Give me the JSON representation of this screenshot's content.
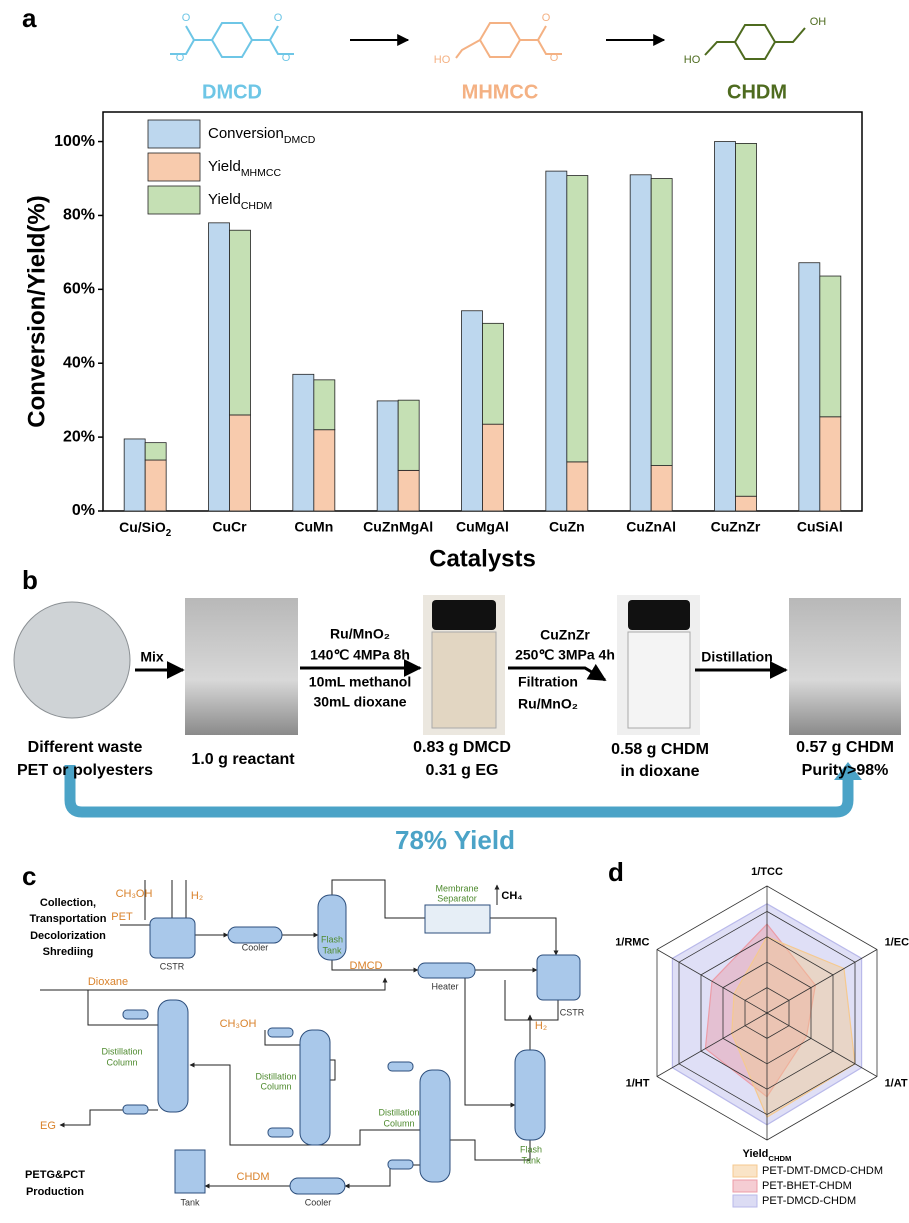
{
  "panel_labels": [
    "a",
    "b",
    "c",
    "d"
  ],
  "scheme": {
    "compounds": [
      {
        "name": "DMCD",
        "color": "#6ec6e6"
      },
      {
        "name": "MHMCC",
        "color": "#f4b183"
      },
      {
        "name": "CHDM",
        "color": "#4e6b1f"
      }
    ],
    "atoms": [
      "O",
      "O",
      "O",
      "O",
      "HO",
      "O",
      "O",
      "HO",
      "OH"
    ]
  },
  "chart_data": [
    {
      "type": "bar",
      "x_label": "Catalysts",
      "y_label": "Conversion/Yield(%)",
      "categories": [
        {
          "label": "Cu/SiO",
          "sub": "2"
        },
        "CuCr",
        "CuMn",
        "CuZnMgAl",
        "CuMgAl",
        "CuZn",
        "CuZnAl",
        "CuZnZr",
        "CuSiAl"
      ],
      "series": [
        {
          "name": "Conversion",
          "name_sub": "DMCD",
          "color": "#bdd7ee",
          "values": [
            19.5,
            78,
            37,
            29.8,
            54.2,
            92,
            91,
            100,
            67.2
          ]
        },
        {
          "name": "Yield",
          "name_sub": "MHMCC",
          "color": "#f8cbad",
          "values": [
            13.8,
            26,
            22,
            11,
            23.5,
            13.3,
            12.3,
            4,
            25.5
          ]
        },
        {
          "name": "Yield",
          "name_sub": "CHDM",
          "color": "#c5e0b4",
          "values": [
            4.7,
            50,
            13.5,
            19,
            27.3,
            77.5,
            77.7,
            95.5,
            38.1
          ]
        }
      ],
      "ylim": [
        0,
        108
      ],
      "yticks": [
        {
          "value": 0,
          "label": "0%"
        },
        {
          "value": 20,
          "label": "20%"
        },
        {
          "value": 40,
          "label": "40%"
        },
        {
          "value": 60,
          "label": "60%"
        },
        {
          "value": 80,
          "label": "80%"
        },
        {
          "value": 100,
          "label": "100%"
        }
      ],
      "legend": "upper left"
    },
    {
      "type": "radar",
      "categories": [
        "1/TCC",
        "1/EC",
        "1/AT",
        {
          "label": "Yield",
          "sub": "CHDM"
        },
        "1/HT",
        "1/RMC"
      ],
      "rlim": [
        0,
        5
      ],
      "rticks": [
        1,
        2,
        3,
        4,
        5
      ],
      "series": [
        {
          "name": "PET-DMT-DMCD-CHDM",
          "color": "#f5c98f",
          "values": [
            3.0,
            3.5,
            4.0,
            4.1,
            1.6,
            1.5
          ]
        },
        {
          "name": "PET-BHET-CHDM",
          "color": "#ec9ca7",
          "values": [
            3.5,
            2.2,
            1.8,
            3.3,
            2.8,
            2.5
          ]
        },
        {
          "name": "PET-DMCD-CHDM",
          "color": "#b9b9ea",
          "values": [
            4.3,
            4.3,
            4.3,
            4.4,
            4.3,
            4.3
          ]
        }
      ],
      "legend": "lower right"
    }
  ],
  "process": {
    "conditions": [
      "Mix",
      "Ru/MnO₂",
      "140℃ 4MPa 8h",
      "10mL methanol",
      "30mL dioxane",
      "CuZnZr",
      "250℃ 3MPa 4h",
      "Filtration",
      "Ru/MnO₂",
      "Distillation"
    ],
    "captions": [
      "Different waste",
      "PET or polyesters",
      "1.0 g reactant",
      "0.83 g DMCD",
      "0.31 g EG",
      "0.58 g CHDM",
      "in dioxane",
      "0.57 g CHDM",
      "Purity>98%"
    ],
    "yield": "78% Yield",
    "yield_color": "#4ba3c7"
  },
  "flowsheet": {
    "labels": [
      "Collection,",
      "Transportation",
      "Decolorization",
      "Shrediing",
      "PET",
      "CH₃OH",
      "H₂",
      "CSTR",
      "Cooler",
      "Flash",
      "Tank",
      "Membrane",
      "Separator",
      "CH₄",
      "DMCD",
      "Dioxane",
      "Heater",
      "CSTR",
      "Distillation",
      "Column",
      "CH₃OH",
      "Distillation",
      "Column",
      "Distillation",
      "Column",
      "H₂",
      "Flash",
      "Tank",
      "EG",
      "PETG&PCT",
      "Production",
      "Tank",
      "CHDM",
      "Cooler"
    ]
  }
}
